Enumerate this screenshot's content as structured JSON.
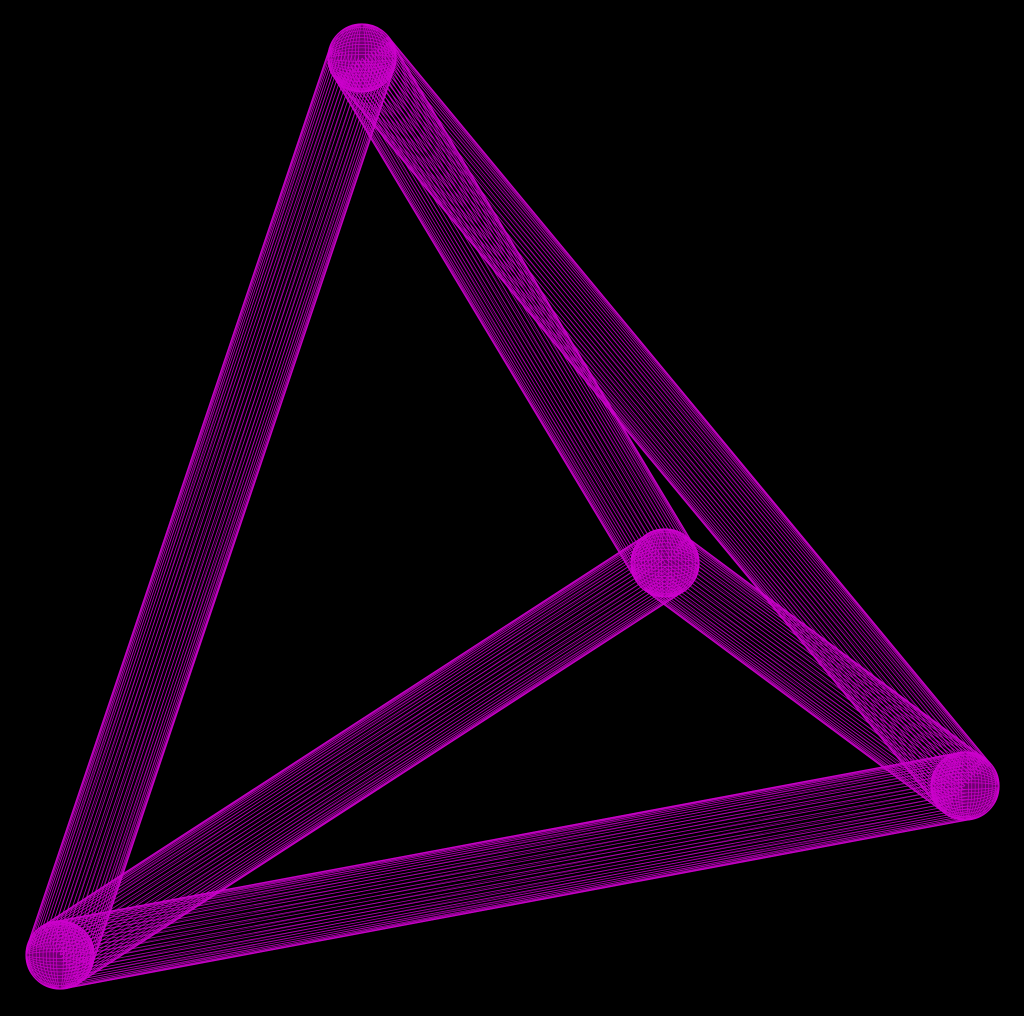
{
  "scene": {
    "background_color": "#000000",
    "wire_color": "#cc00cc",
    "render_style": "wireframe",
    "shape": "tetrahedron-frame",
    "vertex_count": 4,
    "edge_count": 6,
    "vertex_names": [
      "vertex-top",
      "vertex-center",
      "vertex-right",
      "vertex-bottom-left"
    ],
    "edge_names": [
      "edge-top-to-bottom-left",
      "edge-top-to-right",
      "edge-top-to-center",
      "edge-center-to-bottom-left",
      "edge-center-to-right",
      "edge-bottom-left-to-right"
    ]
  }
}
